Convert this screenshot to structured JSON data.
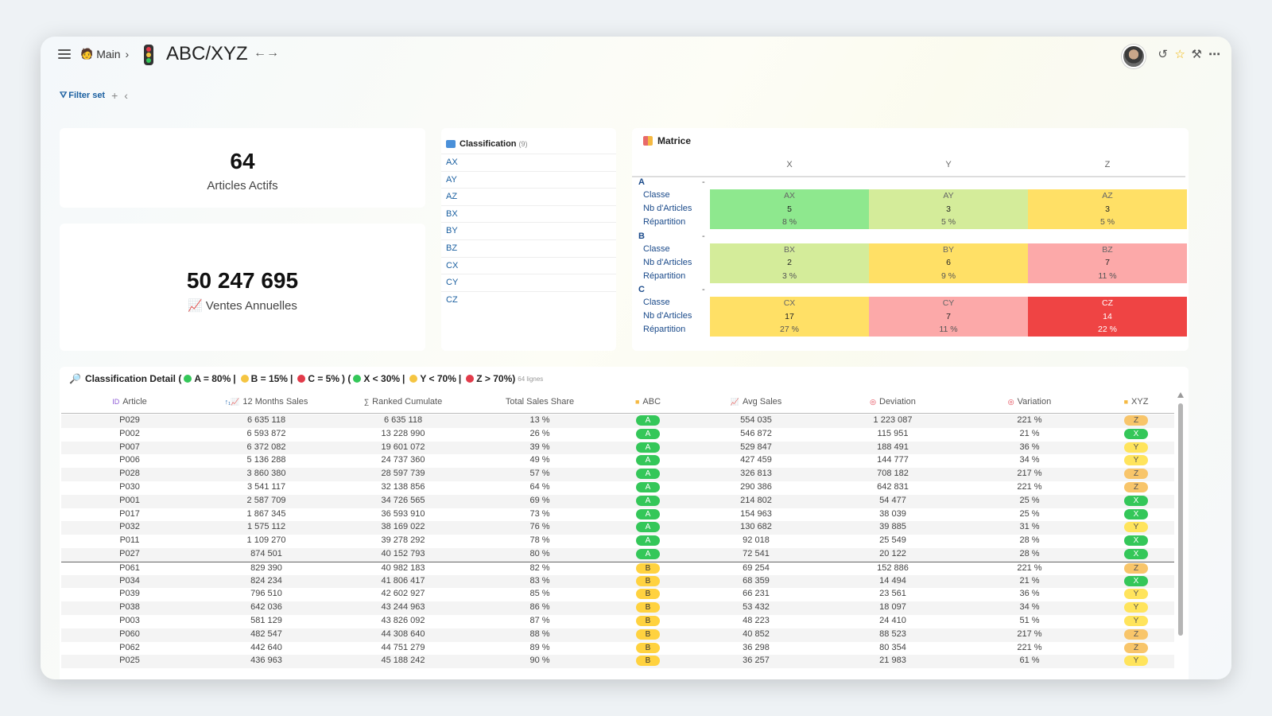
{
  "header": {
    "breadcrumb": "Main",
    "title": "ABC/XYZ",
    "title_arrows": "←→"
  },
  "filter": {
    "label": "Filter set"
  },
  "kpi_articles": {
    "value": "64",
    "label": "Articles Actifs"
  },
  "kpi_sales": {
    "value": "50 247 695",
    "label": "Ventes Annuelles"
  },
  "classification": {
    "title": "Classification",
    "count": "(9)",
    "items": [
      "AX",
      "AY",
      "AZ",
      "BX",
      "BY",
      "BZ",
      "CX",
      "CY",
      "CZ"
    ]
  },
  "matrix": {
    "title": "Matrice",
    "columns": [
      "X",
      "Y",
      "Z"
    ],
    "group_dash": "-",
    "row_labels": [
      "Classe",
      "Nb d'Articles",
      "Répartition"
    ],
    "groups": [
      {
        "name": "A",
        "cells": [
          {
            "classe": "AX",
            "nb": "5",
            "rep": "8 %",
            "color": "#8ee88e"
          },
          {
            "classe": "AY",
            "nb": "3",
            "rep": "5 %",
            "color": "#d4ec9a"
          },
          {
            "classe": "AZ",
            "nb": "3",
            "rep": "5 %",
            "color": "#ffe066"
          }
        ]
      },
      {
        "name": "B",
        "cells": [
          {
            "classe": "BX",
            "nb": "2",
            "rep": "3 %",
            "color": "#d4ec9a"
          },
          {
            "classe": "BY",
            "nb": "6",
            "rep": "9 %",
            "color": "#ffe066"
          },
          {
            "classe": "BZ",
            "nb": "7",
            "rep": "11 %",
            "color": "#fca9a9"
          }
        ]
      },
      {
        "name": "C",
        "cells": [
          {
            "classe": "CX",
            "nb": "17",
            "rep": "27 %",
            "color": "#ffe066"
          },
          {
            "classe": "CY",
            "nb": "7",
            "rep": "11 %",
            "color": "#fca9a9"
          },
          {
            "classe": "CZ",
            "nb": "14",
            "rep": "22 %",
            "color": "#ef4444"
          }
        ]
      }
    ]
  },
  "detail": {
    "title_prefix": "Classification Detail (",
    "legend_abc": [
      {
        "text": "A = 80%",
        "color": "#34c759"
      },
      {
        "text": "B = 15%",
        "color": "#f5c542"
      },
      {
        "text": "C = 5%",
        "color": "#e23b4a"
      }
    ],
    "legend_xyz": [
      {
        "text": "X < 30%",
        "color": "#34c759"
      },
      {
        "text": "Y < 70%",
        "color": "#f5c542"
      },
      {
        "text": "Z > 70%)",
        "color": "#e23b4a"
      }
    ],
    "sep": "|",
    "mid": ") (",
    "row_count": "64 lignes",
    "columns": [
      "Article",
      "12 Months Sales",
      "Ranked Cumulate",
      "Total Sales Share",
      "ABC",
      "Avg Sales",
      "Deviation",
      "Variation",
      "XYZ"
    ],
    "rows": [
      [
        "P029",
        "6 635 118",
        "6 635 118",
        "13 %",
        "A",
        "554 035",
        "1 223 087",
        "221 %",
        "Z"
      ],
      [
        "P002",
        "6 593 872",
        "13 228 990",
        "26 %",
        "A",
        "546 872",
        "115 951",
        "21 %",
        "X"
      ],
      [
        "P007",
        "6 372 082",
        "19 601 072",
        "39 %",
        "A",
        "529 847",
        "188 491",
        "36 %",
        "Y"
      ],
      [
        "P006",
        "5 136 288",
        "24 737 360",
        "49 %",
        "A",
        "427 459",
        "144 777",
        "34 %",
        "Y"
      ],
      [
        "P028",
        "3 860 380",
        "28 597 739",
        "57 %",
        "A",
        "326 813",
        "708 182",
        "217 %",
        "Z"
      ],
      [
        "P030",
        "3 541 117",
        "32 138 856",
        "64 %",
        "A",
        "290 386",
        "642 831",
        "221 %",
        "Z"
      ],
      [
        "P001",
        "2 587 709",
        "34 726 565",
        "69 %",
        "A",
        "214 802",
        "54 477",
        "25 %",
        "X"
      ],
      [
        "P017",
        "1 867 345",
        "36 593 910",
        "73 %",
        "A",
        "154 963",
        "38 039",
        "25 %",
        "X"
      ],
      [
        "P032",
        "1 575 112",
        "38 169 022",
        "76 %",
        "A",
        "130 682",
        "39 885",
        "31 %",
        "Y"
      ],
      [
        "P011",
        "1 109 270",
        "39 278 292",
        "78 %",
        "A",
        "92 018",
        "25 549",
        "28 %",
        "X"
      ],
      [
        "P027",
        "874 501",
        "40 152 793",
        "80 %",
        "A",
        "72 541",
        "20 122",
        "28 %",
        "X"
      ],
      [
        "P061",
        "829 390",
        "40 982 183",
        "82 %",
        "B",
        "69 254",
        "152 886",
        "221 %",
        "Z"
      ],
      [
        "P034",
        "824 234",
        "41 806 417",
        "83 %",
        "B",
        "68 359",
        "14 494",
        "21 %",
        "X"
      ],
      [
        "P039",
        "796 510",
        "42 602 927",
        "85 %",
        "B",
        "66 231",
        "23 561",
        "36 %",
        "Y"
      ],
      [
        "P038",
        "642 036",
        "43 244 963",
        "86 %",
        "B",
        "53 432",
        "18 097",
        "34 %",
        "Y"
      ],
      [
        "P003",
        "581 129",
        "43 826 092",
        "87 %",
        "B",
        "48 223",
        "24 410",
        "51 %",
        "Y"
      ],
      [
        "P060",
        "482 547",
        "44 308 640",
        "88 %",
        "B",
        "40 852",
        "88 523",
        "217 %",
        "Z"
      ],
      [
        "P062",
        "442 640",
        "44 751 279",
        "89 %",
        "B",
        "36 298",
        "80 354",
        "221 %",
        "Z"
      ],
      [
        "P025",
        "436 963",
        "45 188 242",
        "90 %",
        "B",
        "36 257",
        "21 983",
        "61 %",
        "Y"
      ]
    ]
  }
}
